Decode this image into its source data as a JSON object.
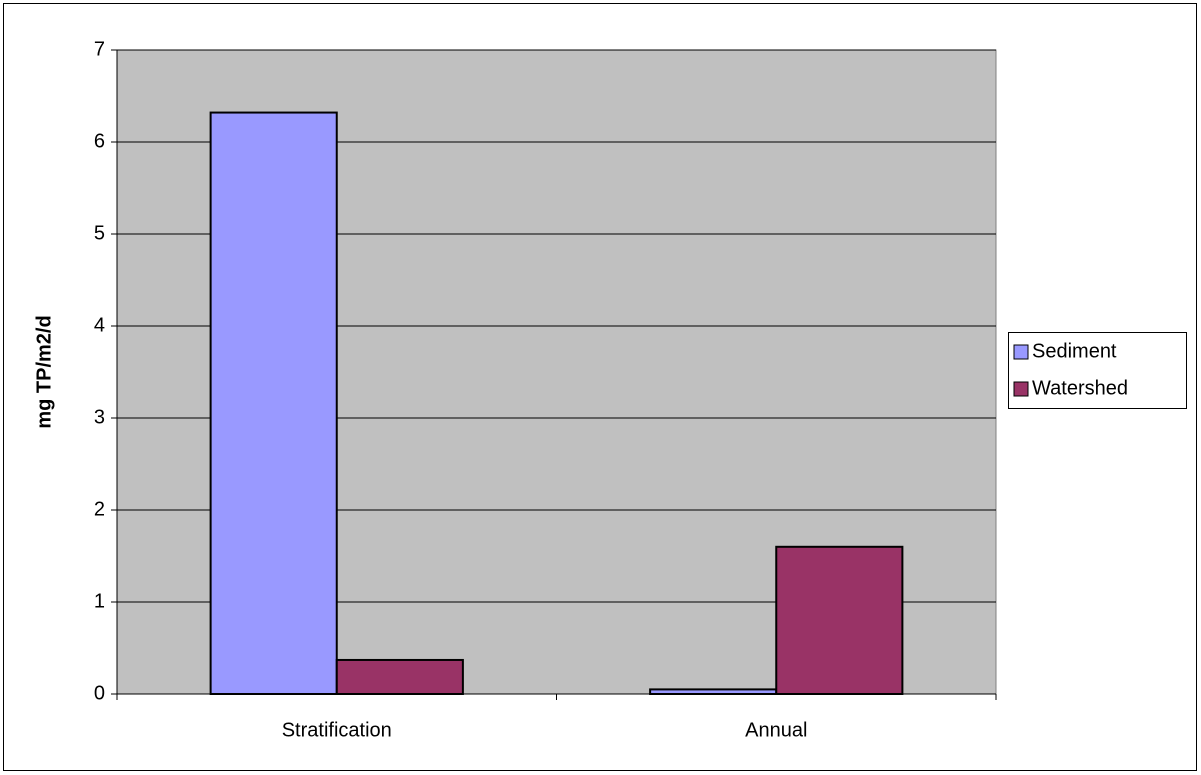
{
  "chart_data": {
    "type": "bar",
    "y_label": "mg TP/m2/d",
    "categories": [
      "Stratification",
      "Annual"
    ],
    "series": [
      {
        "name": "Sediment",
        "color": "#9999ff",
        "values": [
          6.32,
          0.05
        ]
      },
      {
        "name": "Watershed",
        "color": "#993366",
        "values": [
          0.37,
          1.6
        ]
      }
    ],
    "ylim": [
      0,
      7
    ],
    "yticks": [
      0,
      1,
      2,
      3,
      4,
      5,
      6,
      7
    ],
    "grid": true,
    "legend": "right"
  }
}
